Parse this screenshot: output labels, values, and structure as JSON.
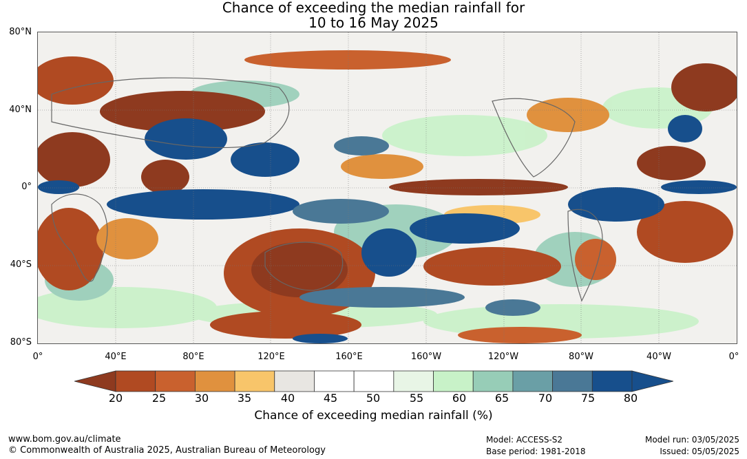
{
  "title": {
    "line1": "Chance of exceeding the median rainfall for",
    "line2": "10 to 16 May 2025"
  },
  "lat_labels": [
    "80°N",
    "40°N",
    "0°",
    "40°S",
    "80°S"
  ],
  "lon_labels": [
    "0°",
    "40°E",
    "80°E",
    "120°E",
    "160°E",
    "160°W",
    "120°W",
    "80°W",
    "40°W",
    "0°"
  ],
  "colorbar": {
    "ticks": [
      "20",
      "25",
      "30",
      "35",
      "40",
      "45",
      "50",
      "55",
      "60",
      "65",
      "70",
      "75",
      "80"
    ],
    "colors": [
      "#8e3a1f",
      "#b04a22",
      "#c9612e",
      "#e0913e",
      "#f8c56a",
      "#e8e6e2",
      "#ffffff",
      "#ffffff",
      "#e8f5e6",
      "#c8f2c8",
      "#97cdb7",
      "#6a9fa6",
      "#4a7896",
      "#174f8c",
      "#174f8c"
    ],
    "label": "Chance of exceeding median rainfall (%)"
  },
  "footer": {
    "url": "www.bom.gov.au/climate",
    "copyright": "© Commonwealth of Australia 2025, Australian Bureau of Meteorology",
    "model": "Model: ACCESS-S2",
    "base_period": "Base period: 1981-2018",
    "model_run": "Model run: 03/05/2025",
    "issued": "Issued: 05/05/2025"
  },
  "map_legend_colors": {
    "very_dry": "#8e3a1f",
    "dry": "#c9612e",
    "slightly_dry": "#f8c56a",
    "neutral": "#e8e6e2",
    "slightly_wet": "#c8f2c8",
    "wet": "#6a9fa6",
    "very_wet": "#174f8c"
  }
}
